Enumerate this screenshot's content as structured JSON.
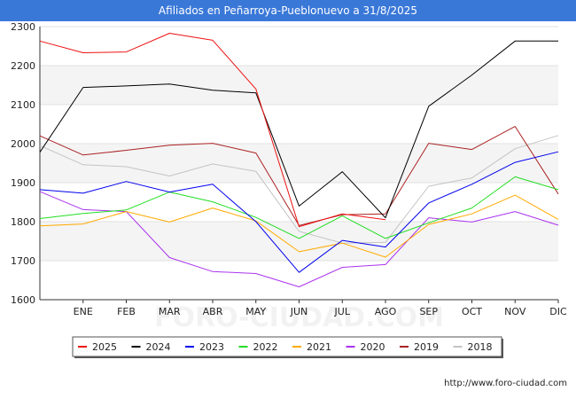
{
  "title": "Afiliados en Peñarroya-Pueblonuevo a 31/8/2025",
  "source_url": "http://www.foro-ciudad.com",
  "watermark": "FORO-CIUDAD.COM",
  "chart_data": {
    "type": "line",
    "categories": [
      "",
      "ENE",
      "FEB",
      "MAR",
      "ABR",
      "MAY",
      "JUN",
      "JUL",
      "AGO",
      "SEP",
      "OCT",
      "NOV",
      "DIC"
    ],
    "ylim": [
      1600,
      2300
    ],
    "yticks": [
      1600,
      1700,
      1800,
      1900,
      2000,
      2100,
      2200,
      2300
    ],
    "grid": "horizontal bands",
    "legend_placement": "bottom",
    "series": [
      {
        "name": "2025",
        "color": "#ee1111",
        "values": [
          2263,
          2233,
          2235,
          2283,
          2265,
          2140,
          1787,
          1820,
          1805,
          null,
          null,
          null,
          null
        ]
      },
      {
        "name": "2024",
        "color": "#000000",
        "values": [
          1978,
          2144,
          2148,
          2153,
          2137,
          2130,
          1840,
          1928,
          1810,
          2096,
          2176,
          2263,
          2263
        ]
      },
      {
        "name": "2023",
        "color": "#0000ee",
        "values": [
          1882,
          1873,
          1903,
          1876,
          1896,
          1800,
          1670,
          1752,
          1735,
          1848,
          1896,
          1952,
          1979
        ]
      },
      {
        "name": "2022",
        "color": "#22dd22",
        "values": [
          1808,
          1821,
          1830,
          1876,
          1851,
          1811,
          1757,
          1815,
          1757,
          1797,
          1835,
          1915,
          1882
        ]
      },
      {
        "name": "2021",
        "color": "#ffaa00",
        "values": [
          1789,
          1794,
          1826,
          1799,
          1835,
          1802,
          1723,
          1745,
          1709,
          1793,
          1820,
          1868,
          1806
        ]
      },
      {
        "name": "2020",
        "color": "#aa33ee",
        "values": [
          1877,
          1831,
          1826,
          1708,
          1672,
          1667,
          1633,
          1683,
          1690,
          1810,
          1799,
          1826,
          1791
        ]
      },
      {
        "name": "2019",
        "color": "#aa2222",
        "values": [
          2020,
          1971,
          1983,
          1996,
          2001,
          1976,
          1790,
          1818,
          1820,
          2001,
          1985,
          2044,
          1871
        ]
      },
      {
        "name": "2018",
        "color": "#c4c4c4",
        "values": [
          1995,
          1946,
          1941,
          1917,
          1948,
          1929,
          1775,
          1745,
          1747,
          1891,
          1912,
          1987,
          2021
        ]
      }
    ]
  }
}
